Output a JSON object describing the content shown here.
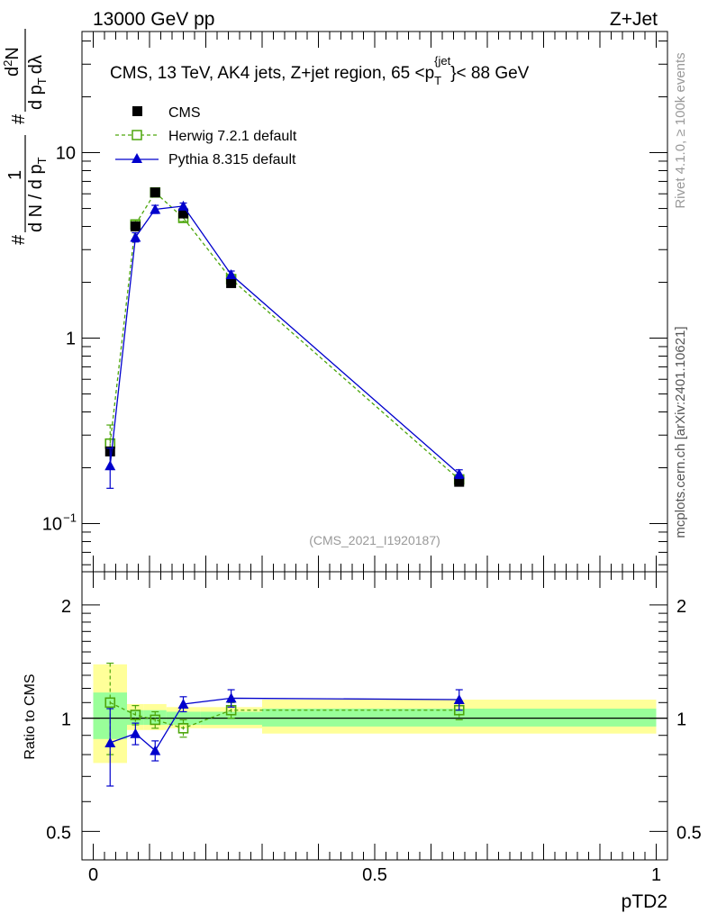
{
  "header": {
    "left": "13000 GeV pp",
    "right": "Z+Jet"
  },
  "side_labels": {
    "rivet": "Rivet 4.1.0, ≥ 100k events",
    "mcplots": "mcplots.cern.ch [arXiv:2401.10621]"
  },
  "colors": {
    "cms": "#000000",
    "herwig": "#4da60c",
    "pythia": "#0000cc",
    "band_yellow": "#ffff99",
    "band_green": "#99ff99",
    "watermark": "#999999"
  },
  "chart_data": [
    {
      "type": "line",
      "panel": "main",
      "title": "CMS, 13 TeV, AK4 jets, Z+jet region, 65 <p_T^{jet}< 88 GeV",
      "title_parts": {
        "prefix": "CMS, 13 TeV, AK4 jets, Z+jet region, 65 <p",
        "sub": "T",
        "sup": "{jet",
        "suffix": "}< 88 GeV"
      },
      "ylabel": "1/(dN/dpT) d²N/(dpT dλ)",
      "ylabel_parts": {
        "hash": "#",
        "one": "1",
        "lower": "d N / d p",
        "sub": "T",
        "hash2": "#",
        "num": "d",
        "sup2": "2",
        "N": "N",
        "den": "d p",
        "lambda": "dλ"
      },
      "yscale": "log",
      "ylim": [
        0.055,
        45
      ],
      "yticks": [
        {
          "v": 0.1,
          "label": "10",
          "sup": "−1"
        },
        {
          "v": 1,
          "label": "1",
          "sup": ""
        },
        {
          "v": 10,
          "label": "10",
          "sup": ""
        }
      ],
      "x": [
        0.03,
        0.075,
        0.11,
        0.16,
        0.245,
        0.65
      ],
      "series": [
        {
          "name": "CMS",
          "values": [
            0.245,
            4.0,
            6.1,
            4.7,
            1.98,
            0.168
          ],
          "errors": [
            0.01,
            0.1,
            0.15,
            0.1,
            0.05,
            0.005
          ]
        },
        {
          "name": "Herwig 7.2.1 default",
          "values": [
            0.27,
            4.1,
            6.1,
            4.45,
            2.08,
            0.173
          ],
          "errors": [
            0.07,
            0.2,
            0.25,
            0.2,
            0.08,
            0.008
          ]
        },
        {
          "name": "Pythia 8.315 default",
          "values": [
            0.205,
            3.5,
            4.95,
            5.15,
            2.2,
            0.185
          ],
          "errors": [
            0.05,
            0.2,
            0.25,
            0.2,
            0.1,
            0.01
          ]
        }
      ],
      "watermark": "(CMS_2021_I1920187)"
    },
    {
      "type": "line",
      "panel": "ratio",
      "ylabel": "Ratio to CMS",
      "xlabel": "pTD2",
      "xlim": [
        -0.02,
        1.02
      ],
      "ylim": [
        0.42,
        2.45
      ],
      "yscale": "log",
      "xticks": [
        {
          "v": 0,
          "label": "0"
        },
        {
          "v": 0.5,
          "label": "0.5"
        },
        {
          "v": 1,
          "label": "1"
        }
      ],
      "yticks": [
        {
          "v": 0.5,
          "label": "0.5"
        },
        {
          "v": 1,
          "label": "1"
        },
        {
          "v": 2,
          "label": "2"
        }
      ],
      "bands": [
        {
          "x0": 0.0,
          "x1": 0.06,
          "yellow": [
            0.76,
            1.39
          ],
          "green": [
            0.88,
            1.17
          ]
        },
        {
          "x0": 0.06,
          "x1": 0.09,
          "yellow": [
            0.93,
            1.09
          ],
          "green": [
            0.96,
            1.05
          ]
        },
        {
          "x0": 0.09,
          "x1": 0.13,
          "yellow": [
            0.93,
            1.09
          ],
          "green": [
            0.96,
            1.05
          ]
        },
        {
          "x0": 0.13,
          "x1": 0.19,
          "yellow": [
            0.94,
            1.07
          ],
          "green": [
            0.96,
            1.04
          ]
        },
        {
          "x0": 0.19,
          "x1": 0.3,
          "yellow": [
            0.94,
            1.07
          ],
          "green": [
            0.96,
            1.04
          ]
        },
        {
          "x0": 0.3,
          "x1": 1.0,
          "yellow": [
            0.91,
            1.12
          ],
          "green": [
            0.95,
            1.06
          ]
        }
      ],
      "series": [
        {
          "name": "Herwig 7.2.1 default",
          "values": [
            1.1,
            1.02,
            0.99,
            0.94,
            1.05,
            1.05
          ],
          "errors": [
            0.3,
            0.06,
            0.05,
            0.05,
            0.05,
            0.06
          ]
        },
        {
          "name": "Pythia 8.315 default",
          "values": [
            0.86,
            0.91,
            0.82,
            1.09,
            1.13,
            1.12
          ],
          "errors": [
            0.2,
            0.06,
            0.05,
            0.05,
            0.06,
            0.07
          ]
        }
      ]
    }
  ]
}
